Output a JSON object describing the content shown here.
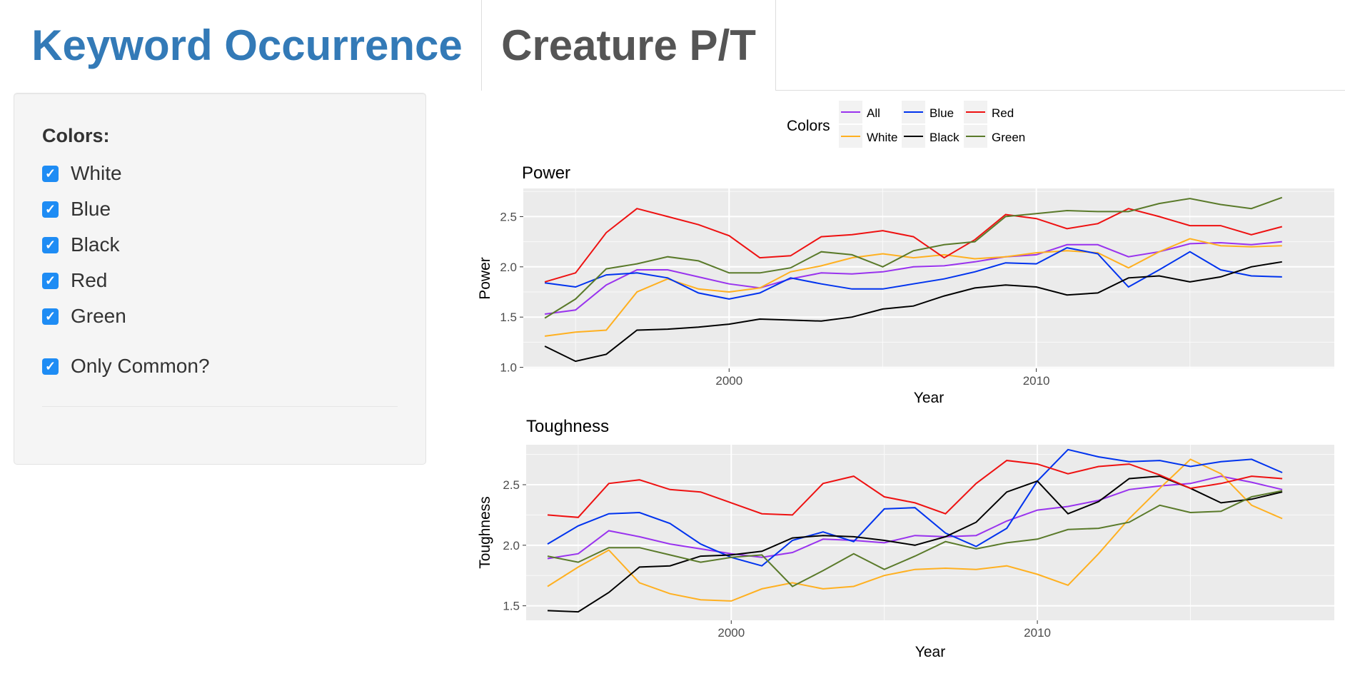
{
  "tabs": [
    {
      "label": "Keyword Occurrence",
      "active": false
    },
    {
      "label": "Creature P/T",
      "active": true
    }
  ],
  "sidebar": {
    "colors_label": "Colors:",
    "checkboxes": [
      {
        "label": "White",
        "checked": true
      },
      {
        "label": "Blue",
        "checked": true
      },
      {
        "label": "Black",
        "checked": true
      },
      {
        "label": "Red",
        "checked": true
      },
      {
        "label": "Green",
        "checked": true
      }
    ],
    "only_common": {
      "label": "Only Common?",
      "checked": true
    }
  },
  "legend": {
    "title": "Colors",
    "entries": [
      {
        "name": "All",
        "color": "#9933ee"
      },
      {
        "name": "White",
        "color": "#ffb020"
      },
      {
        "name": "Blue",
        "color": "#0033ee"
      },
      {
        "name": "Black",
        "color": "#000000"
      },
      {
        "name": "Red",
        "color": "#ee1111"
      },
      {
        "name": "Green",
        "color": "#5a7a2a"
      }
    ]
  },
  "chart_data": [
    {
      "type": "line",
      "title": "Power",
      "xlabel": "Year",
      "ylabel": "Power",
      "xlim": [
        1993.3,
        2019.7
      ],
      "ylim": [
        0.99,
        2.78
      ],
      "xticks": [
        2000,
        2010
      ],
      "yticks": [
        1.0,
        1.5,
        2.0,
        2.5
      ],
      "ytick_labels": [
        "1.0",
        "1.5",
        "2.0",
        "2.5"
      ],
      "x": [
        1994,
        1995,
        1996,
        1997,
        1998,
        1999,
        2000,
        2001,
        2002,
        2003,
        2004,
        2005,
        2006,
        2007,
        2008,
        2009,
        2010,
        2011,
        2012,
        2013,
        2014,
        2015,
        2016,
        2017,
        2018
      ],
      "series": [
        {
          "name": "All",
          "values": [
            1.53,
            1.57,
            1.82,
            1.97,
            1.97,
            1.9,
            1.83,
            1.79,
            1.88,
            1.94,
            1.93,
            1.95,
            2.0,
            2.01,
            2.05,
            2.1,
            2.12,
            2.22,
            2.22,
            2.1,
            2.15,
            2.23,
            2.24,
            2.22,
            2.25
          ]
        },
        {
          "name": "White",
          "values": [
            1.31,
            1.35,
            1.37,
            1.75,
            1.88,
            1.78,
            1.75,
            1.79,
            1.95,
            2.01,
            2.09,
            2.13,
            2.09,
            2.12,
            2.08,
            2.1,
            2.14,
            2.16,
            2.14,
            1.99,
            2.15,
            2.28,
            2.21,
            2.2,
            2.21
          ]
        },
        {
          "name": "Blue",
          "values": [
            1.84,
            1.8,
            1.92,
            1.94,
            1.89,
            1.74,
            1.68,
            1.74,
            1.89,
            1.83,
            1.78,
            1.78,
            1.83,
            1.88,
            1.95,
            2.04,
            2.03,
            2.19,
            2.13,
            1.8,
            1.97,
            2.15,
            1.97,
            1.91,
            1.9
          ]
        },
        {
          "name": "Black",
          "values": [
            1.21,
            1.06,
            1.13,
            1.37,
            1.38,
            1.4,
            1.43,
            1.48,
            1.47,
            1.46,
            1.5,
            1.58,
            1.61,
            1.71,
            1.79,
            1.82,
            1.8,
            1.72,
            1.74,
            1.89,
            1.91,
            1.85,
            1.9,
            2.0,
            2.05
          ]
        },
        {
          "name": "Red",
          "values": [
            1.85,
            1.94,
            2.34,
            2.58,
            2.5,
            2.42,
            2.31,
            2.09,
            2.11,
            2.3,
            2.32,
            2.36,
            2.3,
            2.09,
            2.27,
            2.52,
            2.48,
            2.38,
            2.43,
            2.58,
            2.5,
            2.41,
            2.41,
            2.32,
            2.4
          ]
        },
        {
          "name": "Green",
          "values": [
            1.49,
            1.68,
            1.98,
            2.03,
            2.1,
            2.06,
            1.94,
            1.94,
            1.99,
            2.15,
            2.12,
            2.0,
            2.16,
            2.22,
            2.25,
            2.5,
            2.53,
            2.56,
            2.55,
            2.55,
            2.63,
            2.68,
            2.62,
            2.58,
            2.69
          ]
        }
      ]
    },
    {
      "type": "line",
      "title": "Toughness",
      "xlabel": "Year",
      "ylabel": "Toughness",
      "xlim": [
        1993.3,
        2019.7
      ],
      "ylim": [
        1.38,
        2.83
      ],
      "xticks": [
        2000,
        2010
      ],
      "yticks": [
        1.5,
        2.0,
        2.5
      ],
      "ytick_labels": [
        "1.5",
        "2.0",
        "2.5"
      ],
      "x": [
        1994,
        1995,
        1996,
        1997,
        1998,
        1999,
        2000,
        2001,
        2002,
        2003,
        2004,
        2005,
        2006,
        2007,
        2008,
        2009,
        2010,
        2011,
        2012,
        2013,
        2014,
        2015,
        2016,
        2017,
        2018
      ],
      "series": [
        {
          "name": "All",
          "values": [
            1.89,
            1.93,
            2.12,
            2.07,
            2.01,
            1.97,
            1.93,
            1.9,
            1.94,
            2.05,
            2.04,
            2.02,
            2.08,
            2.07,
            2.08,
            2.2,
            2.29,
            2.32,
            2.37,
            2.46,
            2.49,
            2.51,
            2.57,
            2.52,
            2.46
          ]
        },
        {
          "name": "White",
          "values": [
            1.66,
            1.82,
            1.96,
            1.69,
            1.6,
            1.55,
            1.54,
            1.64,
            1.69,
            1.64,
            1.66,
            1.75,
            1.8,
            1.81,
            1.8,
            1.83,
            1.76,
            1.67,
            1.93,
            2.22,
            2.47,
            2.71,
            2.59,
            2.33,
            2.22
          ]
        },
        {
          "name": "Blue",
          "values": [
            2.01,
            2.16,
            2.26,
            2.27,
            2.18,
            2.01,
            1.9,
            1.83,
            2.04,
            2.11,
            2.03,
            2.3,
            2.31,
            2.1,
            1.99,
            2.14,
            2.53,
            2.79,
            2.73,
            2.69,
            2.7,
            2.65,
            2.69,
            2.71,
            2.6
          ]
        },
        {
          "name": "Black",
          "values": [
            1.46,
            1.45,
            1.61,
            1.82,
            1.83,
            1.91,
            1.92,
            1.95,
            2.06,
            2.08,
            2.07,
            2.04,
            2.0,
            2.07,
            2.19,
            2.44,
            2.53,
            2.26,
            2.36,
            2.55,
            2.57,
            2.47,
            2.35,
            2.38,
            2.44
          ]
        },
        {
          "name": "Red",
          "values": [
            2.25,
            2.23,
            2.51,
            2.54,
            2.46,
            2.44,
            2.35,
            2.26,
            2.25,
            2.51,
            2.57,
            2.4,
            2.35,
            2.26,
            2.51,
            2.7,
            2.67,
            2.59,
            2.65,
            2.67,
            2.58,
            2.47,
            2.51,
            2.57,
            2.55
          ]
        },
        {
          "name": "Green",
          "values": [
            1.91,
            1.86,
            1.98,
            1.98,
            1.92,
            1.86,
            1.9,
            1.92,
            1.66,
            1.79,
            1.93,
            1.8,
            1.91,
            2.03,
            1.97,
            2.02,
            2.05,
            2.13,
            2.14,
            2.19,
            2.33,
            2.27,
            2.28,
            2.4,
            2.45
          ]
        }
      ]
    }
  ]
}
